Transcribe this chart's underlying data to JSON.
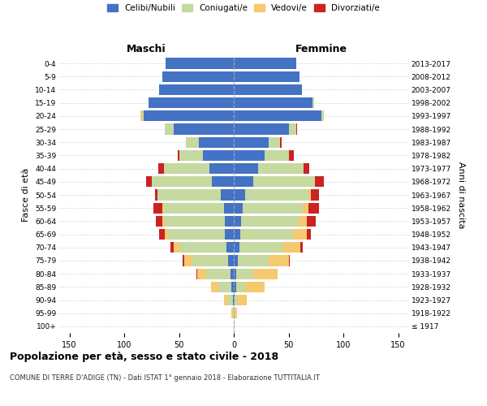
{
  "age_groups": [
    "100+",
    "95-99",
    "90-94",
    "85-89",
    "80-84",
    "75-79",
    "70-74",
    "65-69",
    "60-64",
    "55-59",
    "50-54",
    "45-49",
    "40-44",
    "35-39",
    "30-34",
    "25-29",
    "20-24",
    "15-19",
    "10-14",
    "5-9",
    "0-4"
  ],
  "birth_years": [
    "≤ 1917",
    "1918-1922",
    "1923-1927",
    "1928-1932",
    "1933-1937",
    "1938-1942",
    "1943-1947",
    "1948-1952",
    "1953-1957",
    "1958-1962",
    "1963-1967",
    "1968-1972",
    "1973-1977",
    "1978-1982",
    "1983-1987",
    "1988-1992",
    "1993-1997",
    "1998-2002",
    "2003-2007",
    "2008-2012",
    "2013-2017"
  ],
  "male_celibi": [
    0,
    0,
    1,
    2,
    3,
    5,
    7,
    8,
    8,
    9,
    12,
    20,
    22,
    28,
    32,
    55,
    82,
    78,
    68,
    65,
    62
  ],
  "male_coniugati": [
    0,
    1,
    5,
    12,
    22,
    33,
    43,
    52,
    55,
    55,
    58,
    55,
    42,
    22,
    12,
    8,
    2,
    0,
    0,
    0,
    0
  ],
  "male_vedovi": [
    0,
    1,
    3,
    7,
    8,
    7,
    5,
    3,
    2,
    1,
    0,
    0,
    0,
    0,
    0,
    0,
    1,
    0,
    0,
    0,
    0
  ],
  "male_divorziati": [
    0,
    0,
    0,
    0,
    1,
    2,
    3,
    5,
    6,
    8,
    2,
    5,
    5,
    1,
    0,
    0,
    0,
    0,
    0,
    0,
    0
  ],
  "female_celibi": [
    0,
    0,
    1,
    2,
    2,
    4,
    5,
    6,
    7,
    8,
    10,
    18,
    22,
    28,
    32,
    50,
    80,
    72,
    62,
    60,
    57
  ],
  "female_coniugati": [
    0,
    1,
    3,
    8,
    16,
    28,
    40,
    48,
    52,
    55,
    58,
    55,
    42,
    22,
    10,
    7,
    2,
    1,
    0,
    0,
    0
  ],
  "female_vedovi": [
    1,
    2,
    8,
    18,
    22,
    18,
    16,
    13,
    8,
    5,
    2,
    1,
    0,
    0,
    0,
    0,
    0,
    0,
    0,
    0,
    0
  ],
  "female_divorziati": [
    0,
    0,
    0,
    0,
    0,
    1,
    2,
    3,
    8,
    10,
    8,
    8,
    5,
    5,
    2,
    1,
    0,
    0,
    0,
    0,
    0
  ],
  "color_celibi": "#4472c4",
  "color_coniugati": "#c5d9a0",
  "color_vedovi": "#f5c96e",
  "color_divorziati": "#cc2222",
  "title": "Popolazione per età, sesso e stato civile - 2018",
  "subtitle": "COMUNE DI TERRE D'ADIGE (TN) - Dati ISTAT 1° gennaio 2018 - Elaborazione TUTTITALIA.IT",
  "xlabel_left": "Maschi",
  "xlabel_right": "Femmine",
  "ylabel_left": "Fasce di età",
  "ylabel_right": "Anni di nascita",
  "xlim": 160,
  "background_color": "#ffffff",
  "grid_color": "#cccccc"
}
